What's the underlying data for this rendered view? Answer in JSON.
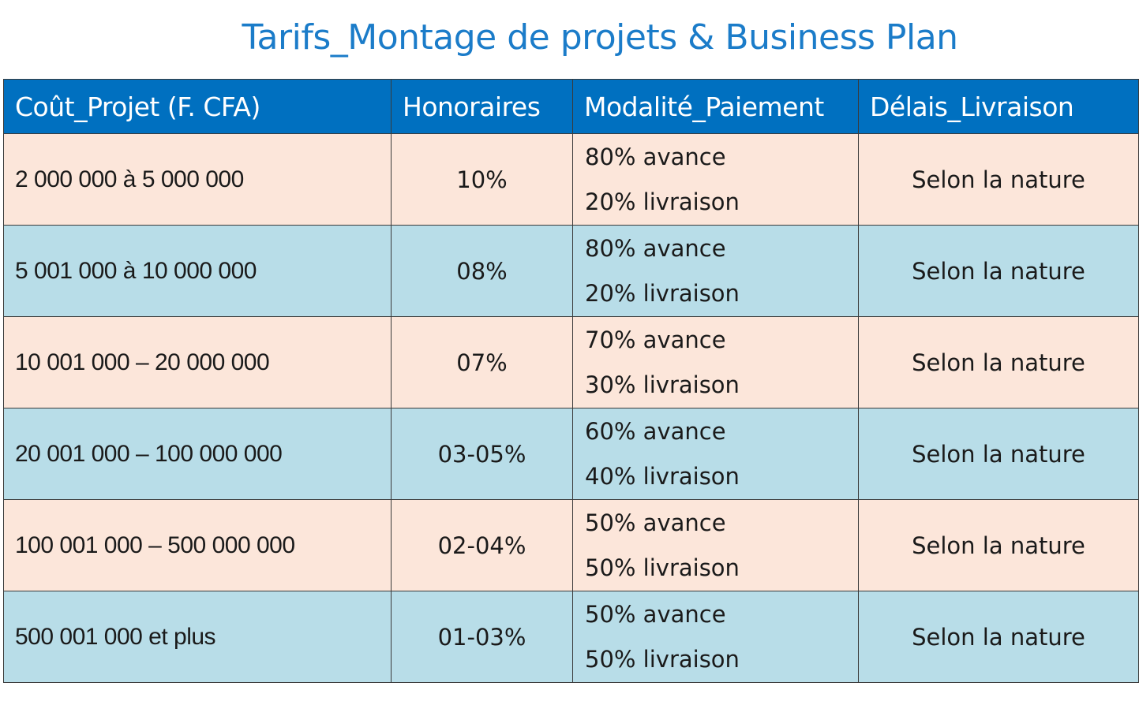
{
  "title": "Tarifs_Montage de projets & Business Plan",
  "table": {
    "headers": [
      "Coût_Projet (F. CFA)",
      "Honoraires",
      "Modalité_Paiement",
      "Délais_Livraison"
    ],
    "rows": [
      {
        "cost": "2 000 000 à 5 000 000",
        "fee": "10%",
        "advance": "80% avance",
        "delivery_share": "20% livraison",
        "delay": "Selon la nature"
      },
      {
        "cost": "5 001 000 à 10 000 000",
        "fee": "08%",
        "advance": "80% avance",
        "delivery_share": "20% livraison",
        "delay": "Selon la nature"
      },
      {
        "cost": "10 001 000 – 20 000 000",
        "fee": "07%",
        "advance": "70% avance",
        "delivery_share": "30% livraison",
        "delay": "Selon la nature"
      },
      {
        "cost": "20 001 000 – 100 000 000",
        "fee": "03-05%",
        "advance": "60% avance",
        "delivery_share": "40% livraison",
        "delay": "Selon la nature"
      },
      {
        "cost": "100 001 000 – 500 000 000",
        "fee": "02-04%",
        "advance": "50% avance",
        "delivery_share": "50% livraison",
        "delay": "Selon la nature"
      },
      {
        "cost": "500 001 000 et plus",
        "fee": "01-03%",
        "advance": "50% avance",
        "delivery_share": "50% livraison",
        "delay": "Selon la nature"
      }
    ]
  },
  "colors": {
    "title": "#1b7cc9",
    "header_bg": "#0070c0",
    "row_peach": "#fce6da",
    "row_blue": "#b8dde8",
    "border": "#3a3a3a"
  }
}
